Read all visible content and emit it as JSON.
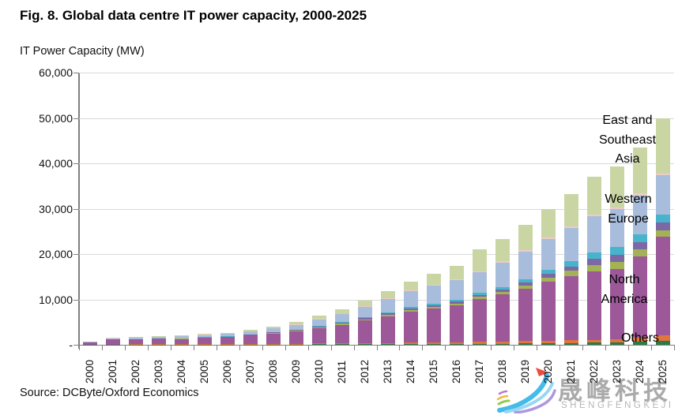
{
  "figure": {
    "title": "Fig. 8. Global data centre IT power capacity, 2000-2025",
    "y_axis_title": "IT Power Capacity (MW)",
    "source": "Source: DCByte/Oxford Economics"
  },
  "watermark": {
    "cn": "晟峰科技",
    "en": "SHENGFENGKEJI",
    "logo_colors": [
      "#36b6e8",
      "#8fd4f0",
      "#a98fd8",
      "#8dc63f",
      "#f0b429",
      "#e8402f"
    ]
  },
  "chart_data": {
    "type": "bar",
    "stacked": true,
    "title": "Fig. 8. Global data centre IT power capacity, 2000-2025",
    "xlabel": "",
    "ylabel": "IT Power Capacity (MW)",
    "ylim": [
      0,
      60000
    ],
    "ytick_interval": 10000,
    "ytick_labels_top_to_bottom": [
      "60,000",
      "50,000",
      "40,000",
      "30,000",
      "20,000",
      "10,000",
      "-"
    ],
    "grid": "horizontal",
    "legend_position": "in-plot right annotations",
    "categories": [
      "2000",
      "2001",
      "2002",
      "2003",
      "2004",
      "2005",
      "2006",
      "2007",
      "2008",
      "2009",
      "2010",
      "2011",
      "2012",
      "2013",
      "2014",
      "2015",
      "2016",
      "2017",
      "2018",
      "2019",
      "2020",
      "2021",
      "2022",
      "2023",
      "2024",
      "2025"
    ],
    "totals": [
      700,
      1650,
      1800,
      1900,
      2050,
      2400,
      2650,
      3300,
      4100,
      5000,
      6400,
      7800,
      9800,
      11900,
      14000,
      15600,
      17400,
      21100,
      23400,
      26500,
      29900,
      33300,
      37000,
      39300,
      43500,
      50000
    ],
    "series": [
      {
        "name": "Others (dark green)",
        "color": "#2e7a46",
        "values": [
          20,
          30,
          30,
          30,
          40,
          40,
          50,
          60,
          70,
          80,
          100,
          110,
          130,
          150,
          170,
          180,
          200,
          230,
          260,
          300,
          350,
          400,
          450,
          500,
          700,
          900
        ]
      },
      {
        "name": "Others (orange)",
        "color": "#e0763c",
        "values": [
          30,
          50,
          60,
          60,
          70,
          80,
          90,
          110,
          130,
          160,
          190,
          220,
          250,
          280,
          310,
          330,
          350,
          400,
          450,
          500,
          550,
          600,
          650,
          700,
          950,
          1200
        ]
      },
      {
        "name": "North America",
        "color": "#9c5898",
        "values": [
          450,
          1000,
          1080,
          1130,
          1200,
          1400,
          1530,
          1880,
          2300,
          2750,
          3450,
          4100,
          5000,
          5900,
          6800,
          7500,
          8200,
          9500,
          10400,
          11600,
          13000,
          14200,
          15100,
          15500,
          17900,
          21700
        ]
      },
      {
        "name": "Unlabeled (olive green)",
        "color": "#a2b254",
        "values": [
          20,
          40,
          50,
          50,
          60,
          70,
          80,
          100,
          120,
          150,
          180,
          220,
          270,
          300,
          330,
          360,
          380,
          420,
          500,
          700,
          900,
          1100,
          1400,
          1600,
          1500,
          1400
        ]
      },
      {
        "name": "Unlabeled (purple)",
        "color": "#7c68a4",
        "values": [
          20,
          40,
          40,
          50,
          50,
          60,
          70,
          80,
          100,
          120,
          150,
          190,
          240,
          290,
          330,
          360,
          390,
          430,
          500,
          600,
          800,
          1000,
          1300,
          1600,
          1650,
          1700
        ]
      },
      {
        "name": "Unlabeled (teal)",
        "color": "#47b4cc",
        "values": [
          20,
          40,
          40,
          50,
          50,
          60,
          70,
          80,
          100,
          120,
          150,
          190,
          240,
          290,
          340,
          370,
          400,
          450,
          550,
          700,
          900,
          1100,
          1400,
          1600,
          1700,
          1800
        ]
      },
      {
        "name": "Western Europe",
        "color": "#a8bddb",
        "values": [
          100,
          280,
          320,
          340,
          380,
          450,
          500,
          650,
          830,
          1050,
          1400,
          1750,
          2300,
          2900,
          3500,
          3900,
          4400,
          4500,
          5500,
          6200,
          6800,
          7400,
          8000,
          8400,
          8550,
          8700
        ]
      },
      {
        "name": "Unlabeled (pink)",
        "color": "#eecac8",
        "values": [
          10,
          20,
          20,
          20,
          20,
          30,
          30,
          40,
          50,
          60,
          80,
          100,
          120,
          140,
          160,
          180,
          200,
          250,
          270,
          300,
          300,
          320,
          340,
          350,
          380,
          400
        ]
      },
      {
        "name": "East and Southeast Asia",
        "color": "#c9d6a4",
        "values": [
          30,
          150,
          160,
          170,
          180,
          210,
          230,
          300,
          400,
          510,
          700,
          920,
          1250,
          1650,
          2060,
          2420,
          2880,
          4920,
          4970,
          5600,
          6300,
          7180,
          8360,
          9050,
          10170,
          12200
        ]
      }
    ],
    "annotations": [
      {
        "text": "East and\nSoutheast\nAsia",
        "series": "East and Southeast Asia"
      },
      {
        "text": "Western\nEurope",
        "series": "Western Europe"
      },
      {
        "text": "North\nAmerica",
        "series": "North America"
      },
      {
        "text": "Others",
        "series": "Others"
      }
    ]
  }
}
